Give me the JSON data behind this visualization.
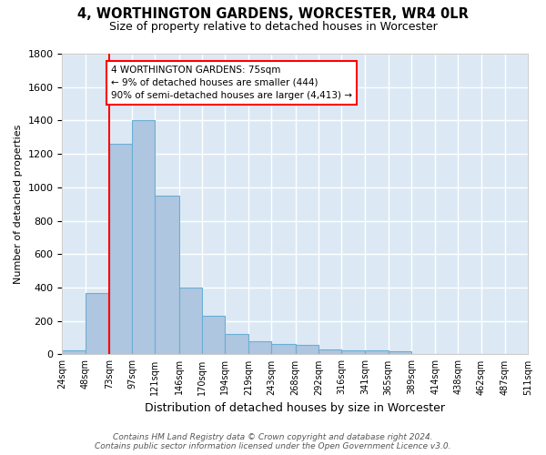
{
  "title": "4, WORTHINGTON GARDENS, WORCESTER, WR4 0LR",
  "subtitle": "Size of property relative to detached houses in Worcester",
  "xlabel": "Distribution of detached houses by size in Worcester",
  "ylabel": "Number of detached properties",
  "bar_color": "#aec6df",
  "bar_edge_color": "#6baed6",
  "bg_color": "#dce9f5",
  "grid_color": "#ffffff",
  "red_line_x": 73,
  "annotation_text": "4 WORTHINGTON GARDENS: 75sqm\n← 9% of detached houses are smaller (444)\n90% of semi-detached houses are larger (4,413) →",
  "bins": [
    24,
    48,
    73,
    97,
    121,
    146,
    170,
    194,
    219,
    243,
    268,
    292,
    316,
    341,
    365,
    389,
    414,
    438,
    462,
    487,
    511
  ],
  "values": [
    25,
    370,
    1260,
    1400,
    950,
    400,
    230,
    120,
    80,
    60,
    55,
    30,
    25,
    25,
    20,
    0,
    0,
    0,
    0,
    0
  ],
  "footnote_line1": "Contains HM Land Registry data © Crown copyright and database right 2024.",
  "footnote_line2": "Contains public sector information licensed under the Open Government Licence v3.0.",
  "ylim": [
    0,
    1800
  ],
  "yticks": [
    0,
    200,
    400,
    600,
    800,
    1000,
    1200,
    1400,
    1600,
    1800
  ]
}
